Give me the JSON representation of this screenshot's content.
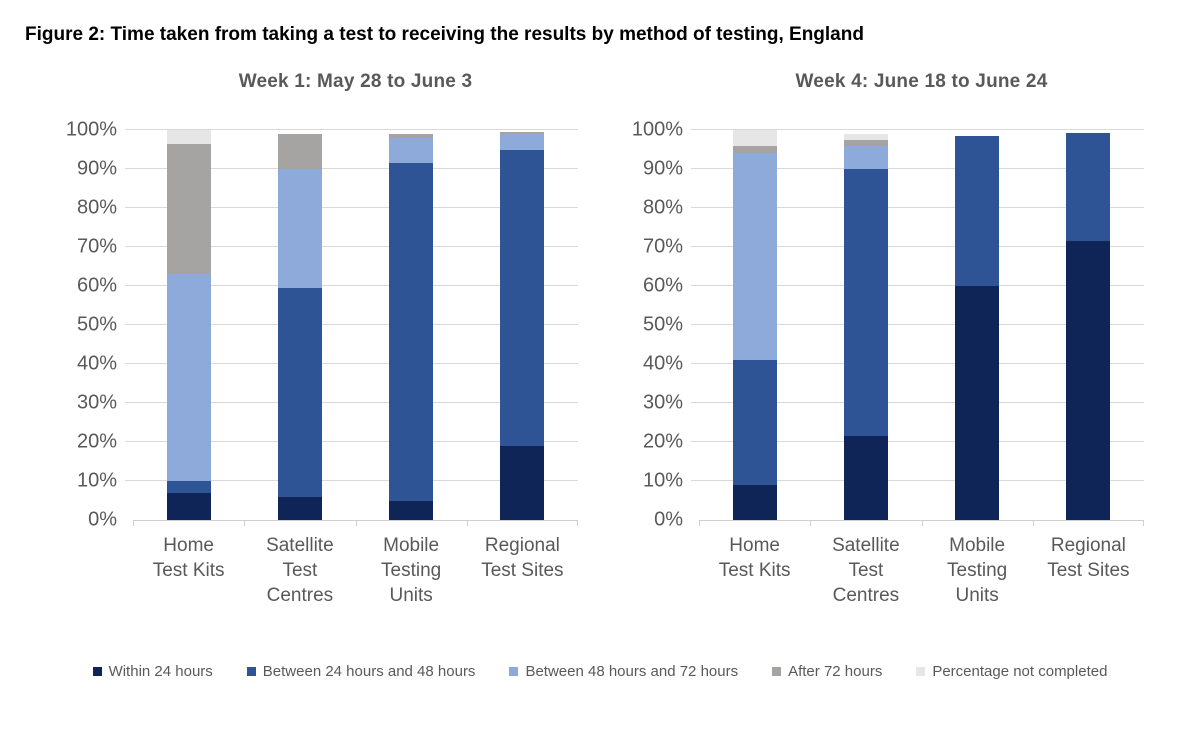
{
  "page": {
    "figure_title": "Figure 2: Time taken from taking a test to receiving the results by method of testing, England"
  },
  "colors": {
    "within_24h": "#0F2557",
    "between_24_48h": "#2F5496",
    "between_48_72h": "#8EAADB",
    "after_72h": "#A6A4A2",
    "not_completed": "#E7E6E6",
    "axis_text": "#595959",
    "gridline": "#D9D9D9"
  },
  "chart_data": [
    {
      "type": "bar",
      "stacked": true,
      "units": "percent",
      "title": "Week 1: May 28 to June 3",
      "categories": [
        "Home\nTest Kits",
        "Satellite\nTest\nCentres",
        "Mobile\nTesting\nUnits",
        "Regional\nTest Sites"
      ],
      "ylim": [
        0,
        100
      ],
      "grid": true,
      "y_ticks": [
        "0%",
        "10%",
        "20%",
        "30%",
        "40%",
        "50%",
        "60%",
        "70%",
        "80%",
        "90%",
        "100%"
      ],
      "series": [
        {
          "name": "Within 24 hours",
          "color": "#0F2557",
          "values": [
            7,
            6,
            5,
            19
          ]
        },
        {
          "name": "Between 24 hours and 48 hours",
          "color": "#2F5496",
          "values": [
            3,
            53.5,
            86.5,
            76
          ]
        },
        {
          "name": "Between 48 hours and 72 hours",
          "color": "#8EAADB",
          "values": [
            53,
            30.5,
            6.5,
            4
          ]
        },
        {
          "name": "After 72 hours",
          "color": "#A6A4A2",
          "values": [
            33.5,
            9,
            1,
            0.5
          ]
        },
        {
          "name": "Percentage not completed",
          "color": "#E7E6E6",
          "values": [
            3.5,
            0,
            0,
            0
          ]
        }
      ],
      "legend_position": "bottom-shared"
    },
    {
      "type": "bar",
      "stacked": true,
      "units": "percent",
      "title": "Week 4: June 18 to June 24",
      "categories": [
        "Home\nTest Kits",
        "Satellite\nTest\nCentres",
        "Mobile\nTesting\nUnits",
        "Regional\nTest Sites"
      ],
      "ylim": [
        0,
        100
      ],
      "grid": true,
      "y_ticks": [
        "0%",
        "10%",
        "20%",
        "30%",
        "40%",
        "50%",
        "60%",
        "70%",
        "80%",
        "90%",
        "100%"
      ],
      "series": [
        {
          "name": "Within 24 hours",
          "color": "#0F2557",
          "values": [
            9,
            21.5,
            60,
            71.5
          ]
        },
        {
          "name": "Between 24 hours and 48 hours",
          "color": "#2F5496",
          "values": [
            32,
            68.5,
            38.5,
            27.8
          ]
        },
        {
          "name": "Between 48 hours and 72 hours",
          "color": "#8EAADB",
          "values": [
            53,
            6,
            0,
            0
          ]
        },
        {
          "name": "After 72 hours",
          "color": "#A6A4A2",
          "values": [
            2,
            1.5,
            0,
            0
          ]
        },
        {
          "name": "Percentage not completed",
          "color": "#E7E6E6",
          "values": [
            4,
            1.5,
            0,
            0
          ]
        }
      ],
      "legend_position": "bottom-shared"
    }
  ]
}
